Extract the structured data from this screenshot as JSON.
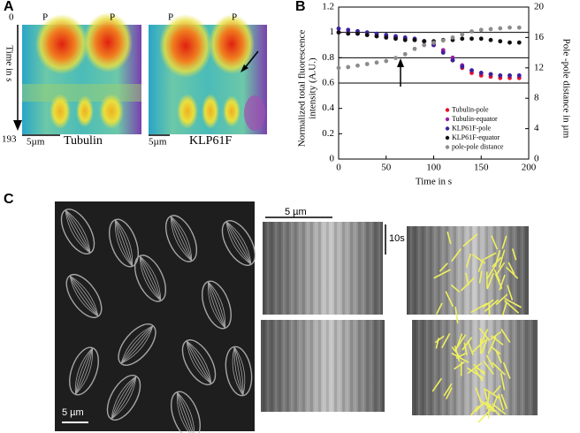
{
  "panel_a": {
    "label": "A",
    "time_start": "0",
    "time_axis": "Time in s",
    "time_end": "193",
    "pole_labels": [
      "P",
      "P",
      "P",
      "P"
    ],
    "scale_bars": [
      "5µm",
      "5µm"
    ],
    "kymograph_labels": [
      "Tubulin",
      "KLP61F"
    ]
  },
  "chart_data": {
    "type": "scatter",
    "panel_label": "B",
    "xlabel": "Time in s",
    "ylabel": [
      "Normalized total fluorescence",
      "intensity (A.U.)"
    ],
    "y2label": "Pole -pole distance in µm",
    "x": [
      0,
      10,
      20,
      30,
      40,
      50,
      60,
      70,
      80,
      90,
      100,
      110,
      120,
      130,
      140,
      150,
      160,
      170,
      180,
      190
    ],
    "series": [
      {
        "name": "Tubulin-pole",
        "color": "#e8102a",
        "values": [
          1,
          1,
          0.99,
          0.98,
          0.97,
          0.97,
          0.96,
          0.95,
          0.94,
          0.93,
          0.9,
          0.85,
          0.78,
          0.72,
          0.68,
          0.66,
          0.65,
          0.64,
          0.64,
          0.64
        ]
      },
      {
        "name": "Tubulin-equator",
        "color": "#9b1fa8",
        "values": [
          1,
          1,
          0.99,
          0.98,
          0.97,
          0.96,
          0.96,
          0.95,
          0.94,
          0.93,
          0.91,
          0.86,
          0.8,
          0.74,
          0.7,
          0.68,
          0.67,
          0.66,
          0.66,
          0.66
        ]
      },
      {
        "name": "KLP61F-pole",
        "color": "#3a22a0",
        "values": [
          1.03,
          1.02,
          1.01,
          1,
          0.99,
          0.98,
          0.97,
          0.96,
          0.95,
          0.93,
          0.9,
          0.84,
          0.78,
          0.73,
          0.7,
          0.68,
          0.67,
          0.66,
          0.66,
          0.66
        ]
      },
      {
        "name": "KLP61F-equator",
        "color": "#111111",
        "values": [
          1,
          0.99,
          0.99,
          0.98,
          0.97,
          0.96,
          0.95,
          0.94,
          0.94,
          0.93,
          0.93,
          0.94,
          0.94,
          0.95,
          0.95,
          0.95,
          0.94,
          0.93,
          0.92,
          0.92
        ]
      },
      {
        "name": "pole-pole distance",
        "color": "#8c8c8c",
        "axis": "y2",
        "values": [
          12,
          12.1,
          12.3,
          12.5,
          12.7,
          12.9,
          13.3,
          13.8,
          14.5,
          15,
          15.3,
          15.6,
          16,
          16.4,
          16.8,
          17,
          17.1,
          17.2,
          17.3,
          17.3
        ]
      }
    ],
    "xlim": [
      0,
      200
    ],
    "xticks": [
      0,
      50,
      100,
      150,
      200
    ],
    "ylim": [
      0,
      1.2
    ],
    "yticks": [
      0,
      0.2,
      0.4,
      0.6,
      0.8,
      1,
      1.2
    ],
    "y2lim": [
      0,
      20
    ],
    "y2ticks": [
      0,
      4,
      8,
      12,
      16,
      20
    ],
    "hlines": [
      1,
      0.8,
      0.6
    ],
    "legend": "lower right"
  },
  "panel_c": {
    "label": "C",
    "scale_bars": [
      "5 µm",
      "5 µm"
    ],
    "time_bar": "10s"
  }
}
